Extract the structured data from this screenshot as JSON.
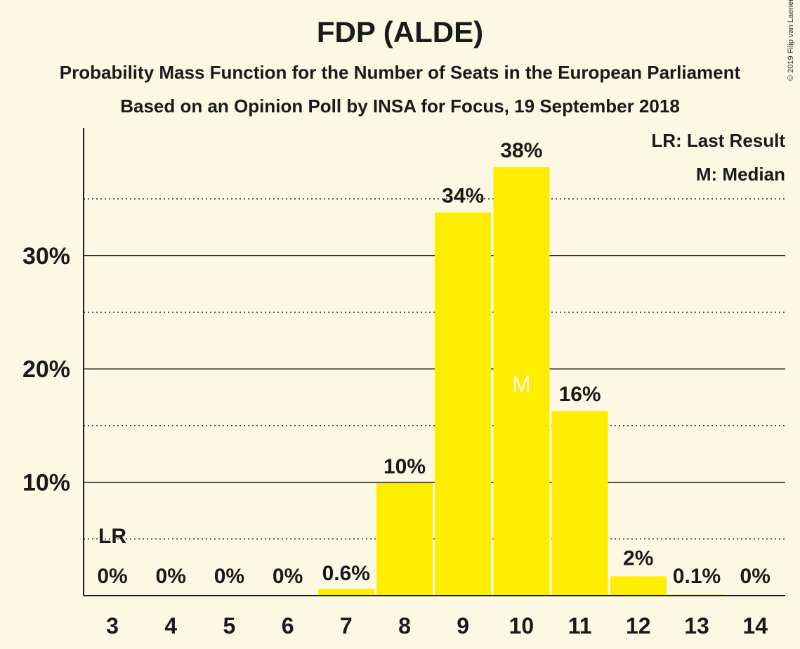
{
  "title": "FDP (ALDE)",
  "subtitle": "Probability Mass Function for the Number of Seats in the European Parliament",
  "subtitle2": "Based on an Opinion Poll by INSA for Focus, 19 September 2018",
  "copyright": "© 2019 Filip van Laenen",
  "legend": {
    "last_result": "LR: Last Result",
    "median": "M: Median"
  },
  "colors": {
    "bar": "#ffed00",
    "background": "#fdf8e3",
    "text": "#1a1a1a",
    "median_label": "#fdf8e3"
  },
  "chart_data": {
    "type": "bar",
    "categories": [
      "3",
      "4",
      "5",
      "6",
      "7",
      "8",
      "9",
      "10",
      "11",
      "12",
      "13",
      "14"
    ],
    "values": [
      0,
      0,
      0,
      0,
      0.6,
      9.9,
      33.8,
      37.8,
      16.3,
      1.7,
      0.1,
      0
    ],
    "data_labels": [
      "0%",
      "0%",
      "0%",
      "0%",
      "0.6%",
      "10%",
      "34%",
      "38%",
      "16%",
      "2%",
      "0.1%",
      "0%"
    ],
    "ylim": [
      0,
      41
    ],
    "yticks": [
      10,
      20,
      30
    ],
    "ytick_labels": [
      "10%",
      "20%",
      "30%"
    ],
    "minor_gridlines": [
      5,
      15,
      25,
      35
    ],
    "last_result": {
      "category": "3",
      "label": "LR"
    },
    "median": {
      "category": "10",
      "label": "M"
    },
    "legend_position": "top-right"
  }
}
